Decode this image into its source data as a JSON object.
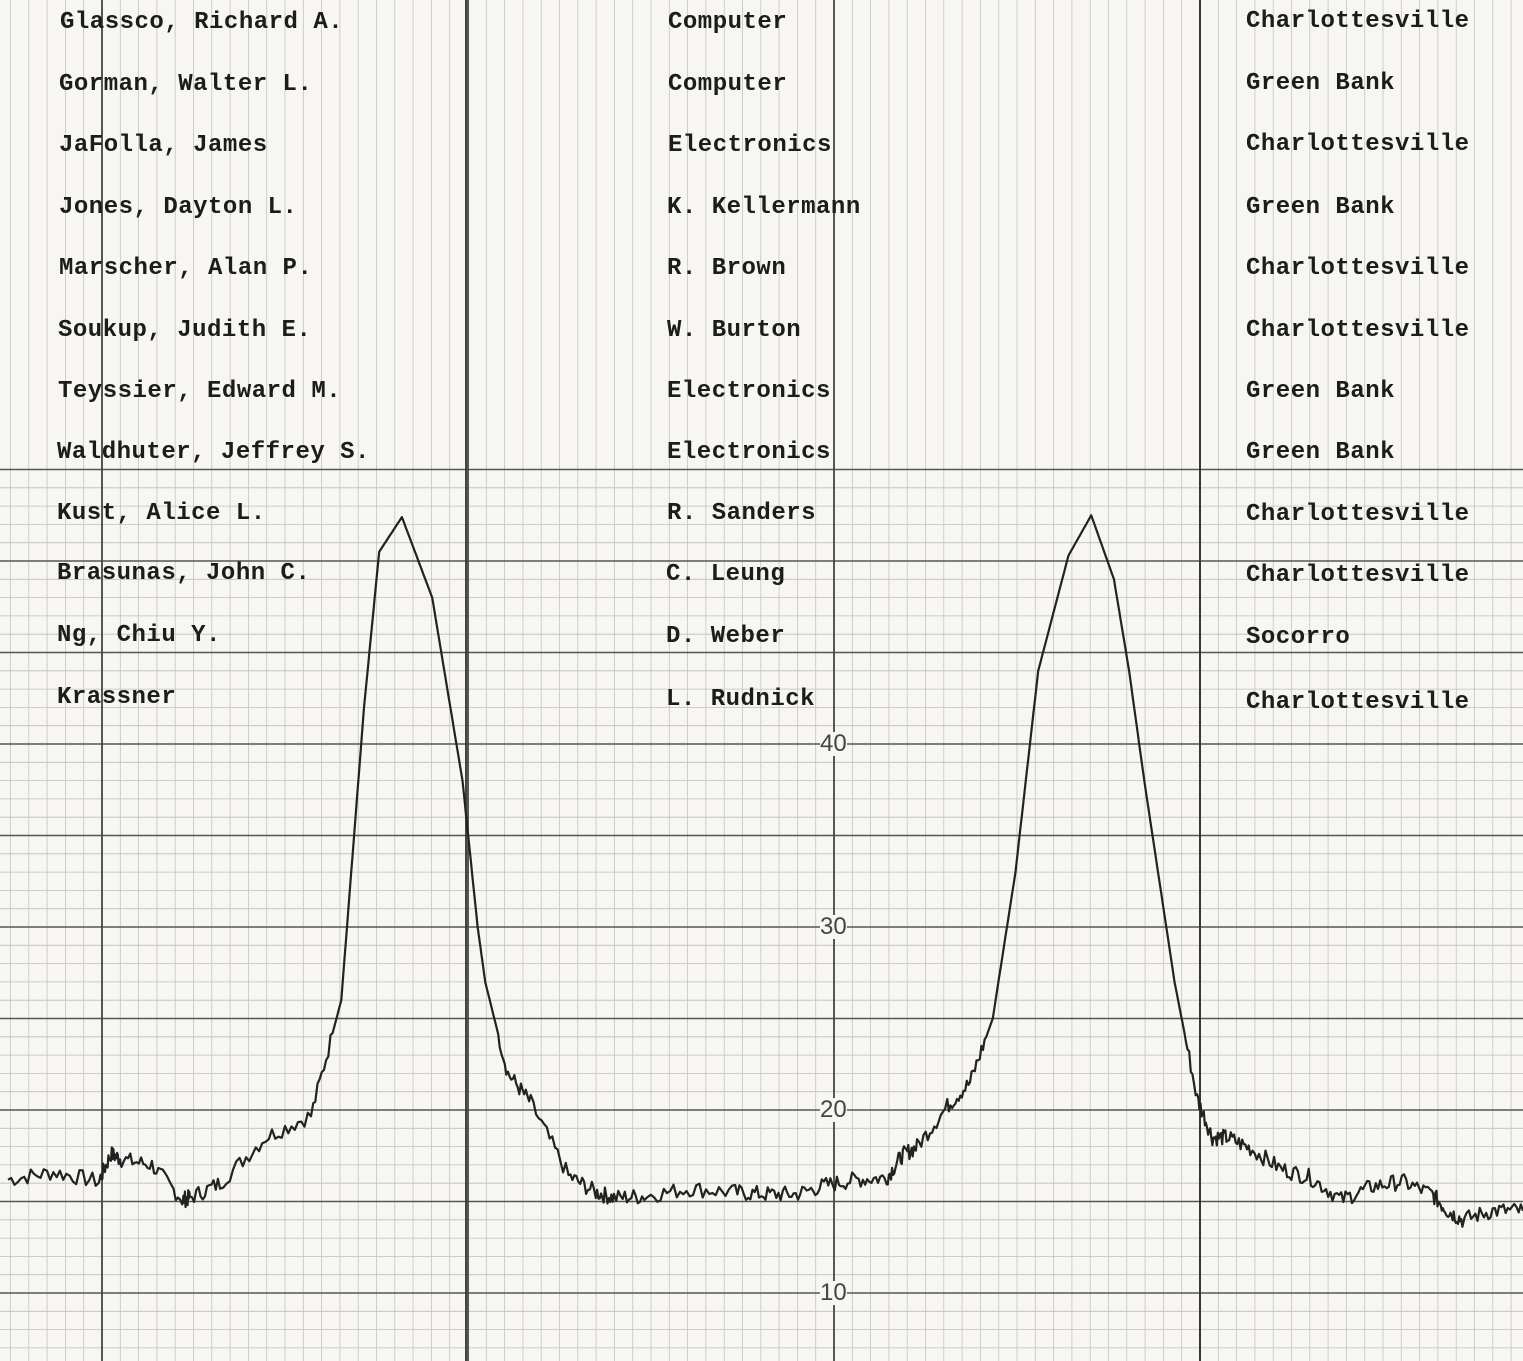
{
  "roster": [
    {
      "name": "Glassco, Richard A.",
      "assignment": "Computer",
      "location": "Charlottesville"
    },
    {
      "name": "Gorman, Walter L.",
      "assignment": "Computer",
      "location": "Green Bank"
    },
    {
      "name": "JaFolla, James",
      "assignment": "Electronics",
      "location": "Charlottesville"
    },
    {
      "name": "Jones, Dayton L.",
      "assignment": "K. Kellermann",
      "location": "Green Bank"
    },
    {
      "name": "Marscher, Alan P.",
      "assignment": "R. Brown",
      "location": "Charlottesville"
    },
    {
      "name": "Soukup, Judith E.",
      "assignment": "W. Burton",
      "location": "Charlottesville"
    },
    {
      "name": "Teyssier, Edward M.",
      "assignment": "Electronics",
      "location": "Green Bank"
    },
    {
      "name": "Waldhuter, Jeffrey S.",
      "assignment": "Electronics",
      "location": "Green Bank"
    },
    {
      "name": "Kust, Alice L.",
      "assignment": "R. Sanders",
      "location": "Charlottesville"
    },
    {
      "name": "Brasunas, John C.",
      "assignment": "C. Leung",
      "location": "Charlottesville"
    },
    {
      "name": "Ng, Chiu Y.",
      "assignment": "D. Weber",
      "location": "Socorro"
    },
    {
      "name": "Krassner",
      "assignment": "L. Rudnick",
      "location": "Charlottesville"
    }
  ],
  "chart_data": {
    "type": "line",
    "title": "",
    "xlabel": "",
    "ylabel": "",
    "ylim": [
      6.5,
      55
    ],
    "xlim": [
      0,
      100
    ],
    "yticks": [
      "10",
      "20",
      "30",
      "40"
    ],
    "grid": true,
    "series": [
      {
        "x": [
          0,
          3,
          6,
          6.8,
          7.5,
          9.5,
          11.5,
          12,
          14,
          17,
          20,
          22,
          23.5,
          24.5,
          26,
          28,
          30,
          31,
          31.5,
          33,
          34.5,
          37,
          38.8,
          40,
          42,
          45,
          48,
          50,
          52,
          54,
          56,
          58,
          59,
          60,
          62,
          63.5,
          65,
          66.5,
          68,
          70,
          71.5,
          73,
          74,
          75,
          77,
          78.5,
          79.5,
          80.5,
          82,
          84,
          86,
          88,
          90,
          92,
          94,
          95,
          96,
          98,
          100
        ],
        "y": [
          16.2,
          16.6,
          16.1,
          17.6,
          17.3,
          17,
          15.1,
          15.2,
          16,
          18.5,
          19.7,
          26,
          42,
          50.5,
          52.4,
          48,
          38,
          30,
          27,
          22,
          20.4,
          16.4,
          15.5,
          15.2,
          15.3,
          15.7,
          15.5,
          15.4,
          15.4,
          15.9,
          16.2,
          16.3,
          17.5,
          18,
          20.2,
          21.5,
          25,
          33,
          44,
          50.3,
          52.5,
          49,
          44,
          38,
          27,
          20.6,
          18.5,
          18.5,
          17.9,
          16.8,
          16.3,
          15.1,
          15.8,
          16.1,
          15.4,
          14.5,
          14,
          14.5,
          14.5
        ]
      }
    ]
  }
}
